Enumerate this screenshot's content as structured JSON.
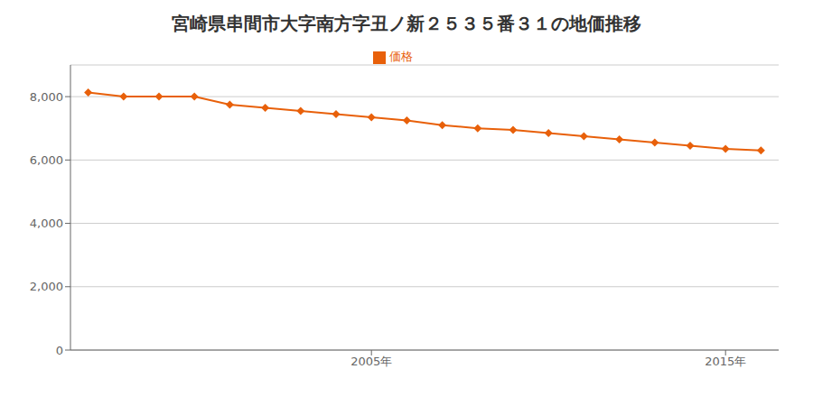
{
  "chart_data": {
    "type": "line",
    "title": "宮崎県串間市大字南方字丑ノ新２５３５番３１の地価推移",
    "x": [
      1997,
      1998,
      1999,
      2000,
      2001,
      2002,
      2003,
      2004,
      2005,
      2006,
      2007,
      2008,
      2009,
      2010,
      2011,
      2012,
      2013,
      2014,
      2015,
      2016
    ],
    "series": [
      {
        "name": "価格",
        "color": "#e8600a",
        "marker": "diamond",
        "values": [
          8130,
          8000,
          8000,
          8000,
          7750,
          7650,
          7550,
          7450,
          7350,
          7250,
          7100,
          7000,
          6950,
          6850,
          6750,
          6650,
          6550,
          6450,
          6350,
          6300
        ]
      }
    ],
    "xlim": [
      1996.5,
      2016.5
    ],
    "xticks": [
      {
        "value": 2005,
        "label": "2005年"
      },
      {
        "value": 2015,
        "label": "2015年"
      }
    ],
    "ylim": [
      0,
      9000
    ],
    "yticks": [
      0,
      {
        "value": 2000,
        "label": "2,000"
      },
      {
        "value": 4000,
        "label": "4,000"
      },
      {
        "value": 6000,
        "label": "6,000"
      },
      {
        "value": 8000,
        "label": "8,000"
      }
    ],
    "grid": "y",
    "legend": "top"
  }
}
